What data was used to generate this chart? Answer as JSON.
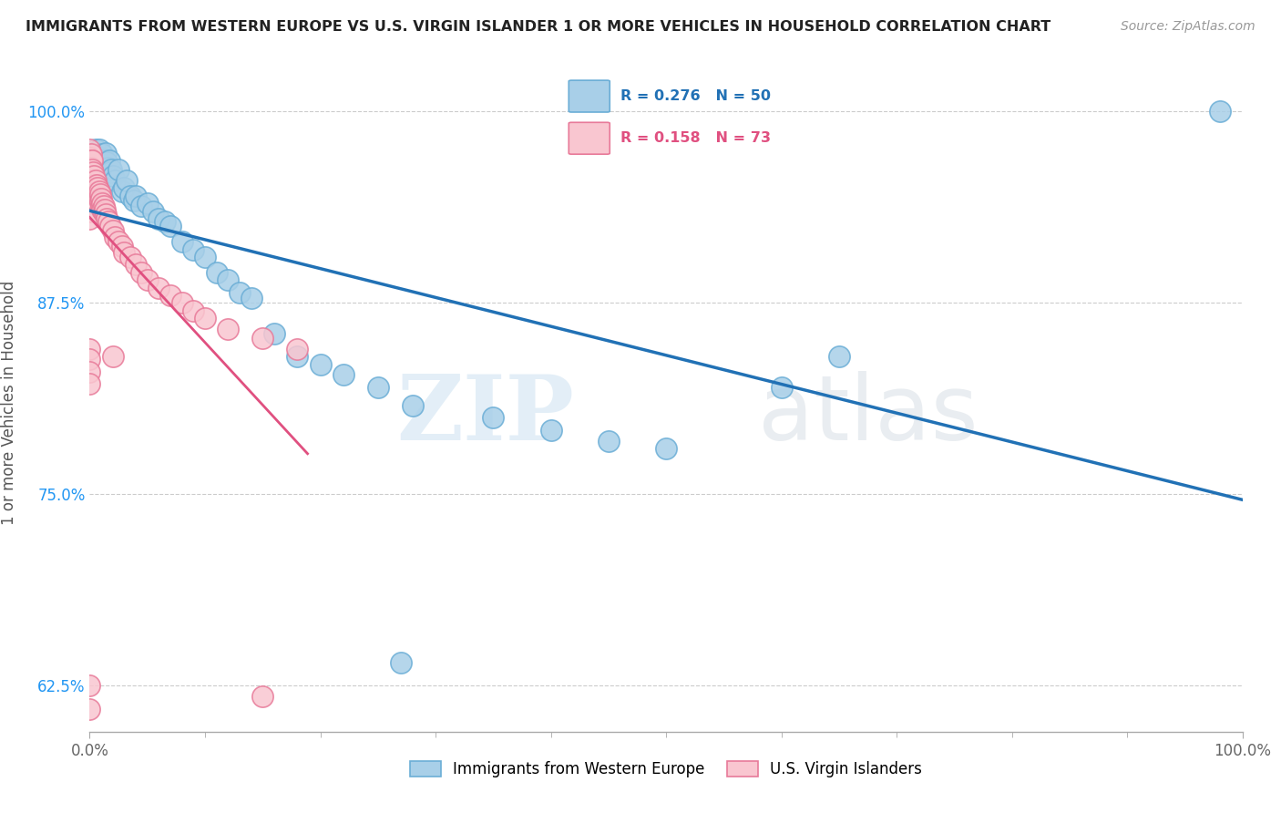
{
  "title": "IMMIGRANTS FROM WESTERN EUROPE VS U.S. VIRGIN ISLANDER 1 OR MORE VEHICLES IN HOUSEHOLD CORRELATION CHART",
  "source": "Source: ZipAtlas.com",
  "ylabel": "1 or more Vehicles in Household",
  "xlim": [
    0.0,
    1.0
  ],
  "ylim": [
    0.595,
    1.025
  ],
  "yticks": [
    0.625,
    0.75,
    0.875,
    1.0
  ],
  "ytick_labels": [
    "62.5%",
    "75.0%",
    "87.5%",
    "100.0%"
  ],
  "xticks": [
    0.0,
    1.0
  ],
  "xtick_labels": [
    "0.0%",
    "100.0%"
  ],
  "blue_R": 0.276,
  "blue_N": 50,
  "pink_R": 0.158,
  "pink_N": 73,
  "legend_label_blue": "Immigrants from Western Europe",
  "legend_label_pink": "U.S. Virgin Islanders",
  "watermark_zip": "ZIP",
  "watermark_atlas": "atlas",
  "dot_color_blue": "#a8cfe8",
  "dot_edge_blue": "#6baed6",
  "dot_color_pink": "#f9c6d0",
  "dot_edge_pink": "#e87a99",
  "line_color_blue": "#2171b5",
  "line_color_pink": "#e05080",
  "legend_box_color": "#e8f4fb",
  "legend_border_color": "#b8d4e8",
  "blue_R_color": "#2171b5",
  "pink_R_color": "#e05080",
  "blue_dots_x": [
    0.005,
    0.007,
    0.008,
    0.009,
    0.01,
    0.011,
    0.012,
    0.013,
    0.014,
    0.015,
    0.016,
    0.017,
    0.018,
    0.019,
    0.02,
    0.022,
    0.025,
    0.028,
    0.03,
    0.032,
    0.035,
    0.038,
    0.04,
    0.045,
    0.05,
    0.055,
    0.06,
    0.065,
    0.07,
    0.08,
    0.09,
    0.1,
    0.11,
    0.12,
    0.13,
    0.14,
    0.16,
    0.18,
    0.2,
    0.22,
    0.25,
    0.28,
    0.35,
    0.4,
    0.45,
    0.5,
    0.6,
    0.65,
    0.27,
    0.98
  ],
  "blue_dots_y": [
    0.975,
    0.97,
    0.975,
    0.97,
    0.965,
    0.972,
    0.968,
    0.966,
    0.973,
    0.967,
    0.963,
    0.968,
    0.96,
    0.962,
    0.958,
    0.955,
    0.962,
    0.948,
    0.95,
    0.955,
    0.945,
    0.942,
    0.945,
    0.938,
    0.94,
    0.935,
    0.93,
    0.928,
    0.925,
    0.915,
    0.91,
    0.905,
    0.895,
    0.89,
    0.882,
    0.878,
    0.855,
    0.84,
    0.835,
    0.828,
    0.82,
    0.808,
    0.8,
    0.792,
    0.785,
    0.78,
    0.82,
    0.84,
    0.64,
    1.0
  ],
  "pink_dots_x": [
    0.0,
    0.0,
    0.0,
    0.0,
    0.0,
    0.0,
    0.0,
    0.0,
    0.0,
    0.0,
    0.001,
    0.001,
    0.001,
    0.001,
    0.001,
    0.002,
    0.002,
    0.002,
    0.002,
    0.003,
    0.003,
    0.003,
    0.004,
    0.004,
    0.004,
    0.005,
    0.005,
    0.005,
    0.006,
    0.006,
    0.006,
    0.007,
    0.007,
    0.008,
    0.008,
    0.009,
    0.009,
    0.01,
    0.01,
    0.011,
    0.011,
    0.012,
    0.012,
    0.013,
    0.014,
    0.015,
    0.016,
    0.018,
    0.02,
    0.022,
    0.025,
    0.028,
    0.03,
    0.035,
    0.04,
    0.045,
    0.05,
    0.06,
    0.07,
    0.08,
    0.09,
    0.1,
    0.12,
    0.15,
    0.18,
    0.02,
    0.15,
    0.0,
    0.0,
    0.0,
    0.0,
    0.0,
    0.0
  ],
  "pink_dots_y": [
    0.975,
    0.97,
    0.965,
    0.96,
    0.955,
    0.95,
    0.945,
    0.94,
    0.935,
    0.93,
    0.972,
    0.968,
    0.963,
    0.958,
    0.953,
    0.968,
    0.962,
    0.957,
    0.952,
    0.96,
    0.955,
    0.95,
    0.958,
    0.952,
    0.947,
    0.955,
    0.95,
    0.945,
    0.952,
    0.947,
    0.942,
    0.95,
    0.945,
    0.948,
    0.943,
    0.946,
    0.941,
    0.943,
    0.938,
    0.94,
    0.936,
    0.938,
    0.934,
    0.936,
    0.933,
    0.93,
    0.928,
    0.925,
    0.922,
    0.918,
    0.915,
    0.912,
    0.908,
    0.905,
    0.9,
    0.895,
    0.89,
    0.885,
    0.88,
    0.875,
    0.87,
    0.865,
    0.858,
    0.852,
    0.845,
    0.84,
    0.618,
    0.845,
    0.838,
    0.83,
    0.822,
    0.625,
    0.61
  ]
}
